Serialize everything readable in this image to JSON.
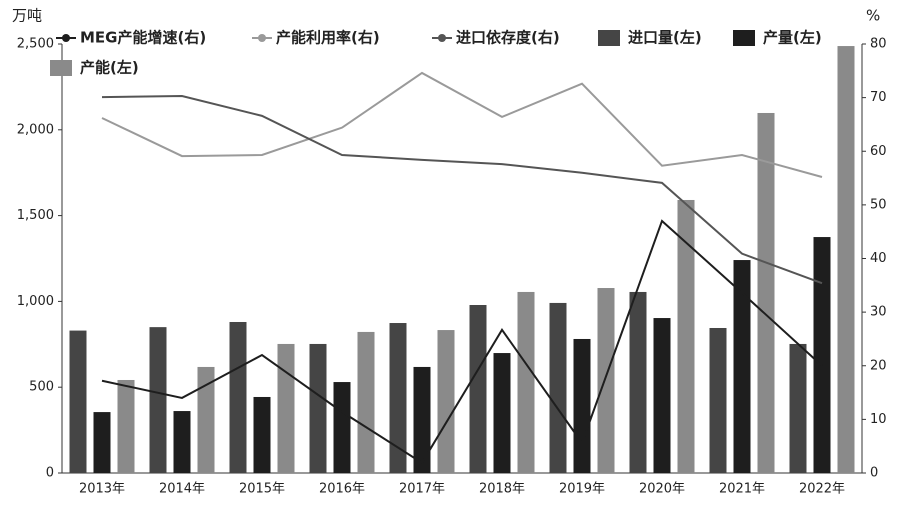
{
  "chart_data": {
    "type": "bar-line",
    "y_unit": "万吨",
    "y2_unit": "%",
    "categories": [
      "2013年",
      "2014年",
      "2015年",
      "2016年",
      "2017年",
      "2018年",
      "2019年",
      "2020年",
      "2021年",
      "2022年"
    ],
    "series": [
      {
        "name": "MEG产能增速(右)",
        "type": "line",
        "axis": "y2",
        "color": "#1e1e1e",
        "values": [
          17.2,
          14,
          22,
          11.4,
          1.9,
          26.7,
          5.6,
          47,
          33.6,
          20
        ]
      },
      {
        "name": "产能利用率(右)",
        "type": "line",
        "axis": "y2",
        "color": "#9a9a9a",
        "values": [
          66.2,
          59.1,
          59.3,
          64.4,
          74.6,
          66.4,
          72.6,
          57.3,
          59.3,
          55.2
        ]
      },
      {
        "name": "进口依存度(右)",
        "type": "line",
        "axis": "y2",
        "color": "#555555",
        "values": [
          70.1,
          70.3,
          66.6,
          59.3,
          58.4,
          57.6,
          56,
          54.1,
          40.9,
          35.4
        ]
      },
      {
        "name": "进口量(左)",
        "type": "bar",
        "axis": "y",
        "color": "#454545",
        "values": [
          830,
          850,
          880,
          752,
          874,
          979,
          991,
          1055,
          845,
          752
        ]
      },
      {
        "name": "产量(左)",
        "type": "bar",
        "axis": "y",
        "color": "#1e1e1e",
        "values": [
          355,
          361,
          443,
          530,
          618,
          699,
          781,
          903,
          1241,
          1375
        ]
      },
      {
        "name": "产能(左)",
        "type": "bar",
        "axis": "y",
        "color": "#8a8a8a",
        "values": [
          542,
          618,
          752,
          822,
          833,
          1055,
          1078,
          1591,
          2098,
          2488
        ]
      }
    ],
    "ylim": [
      0,
      2500
    ],
    "yticks": [
      0,
      500,
      {
        "value": 1000,
        "label": "1,000"
      },
      {
        "value": 1500,
        "label": "1,500"
      },
      {
        "value": 2000,
        "label": "2,000"
      },
      {
        "value": 2500,
        "label": "2,500"
      }
    ],
    "y2lim": [
      0,
      80
    ],
    "y2ticks": [
      0,
      10,
      20,
      30,
      40,
      50,
      60,
      70,
      80
    ]
  }
}
